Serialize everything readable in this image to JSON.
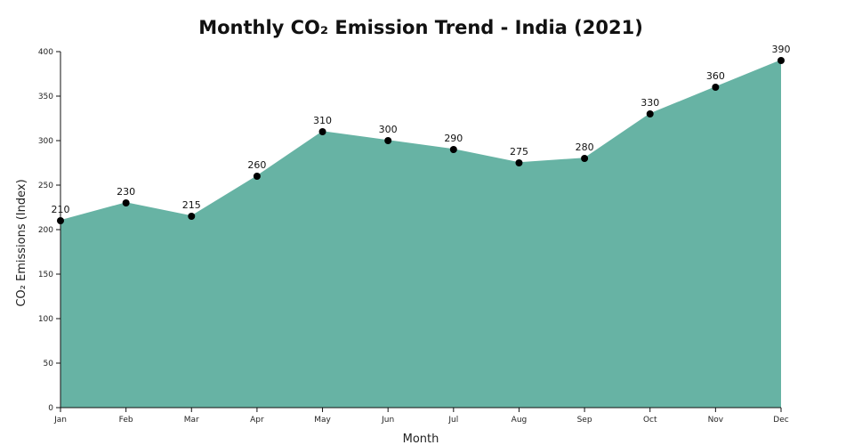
{
  "chart_data": {
    "type": "area",
    "title": "Monthly CO₂ Emission Trend - India (2021)",
    "xlabel": "Month",
    "ylabel": "CO₂ Emissions (Index)",
    "categories": [
      "Jan",
      "Feb",
      "Mar",
      "Apr",
      "May",
      "Jun",
      "Jul",
      "Aug",
      "Sep",
      "Oct",
      "Nov",
      "Dec"
    ],
    "values": [
      210,
      230,
      215,
      260,
      310,
      300,
      290,
      275,
      280,
      330,
      360,
      390
    ],
    "data_labels": [
      "210",
      "230",
      "215",
      "260",
      "310",
      "300",
      "290",
      "275",
      "280",
      "330",
      "360",
      "390"
    ],
    "ylim": [
      0,
      400
    ],
    "yticks": [
      0,
      50,
      100,
      150,
      200,
      250,
      300,
      350,
      400
    ],
    "ytick_labels": [
      "0",
      "50",
      "100",
      "150",
      "200",
      "250",
      "300",
      "350",
      "400"
    ],
    "grid": false,
    "legend": "none",
    "colors": {
      "fill": "#67b3a4",
      "marker": "#000000"
    }
  }
}
